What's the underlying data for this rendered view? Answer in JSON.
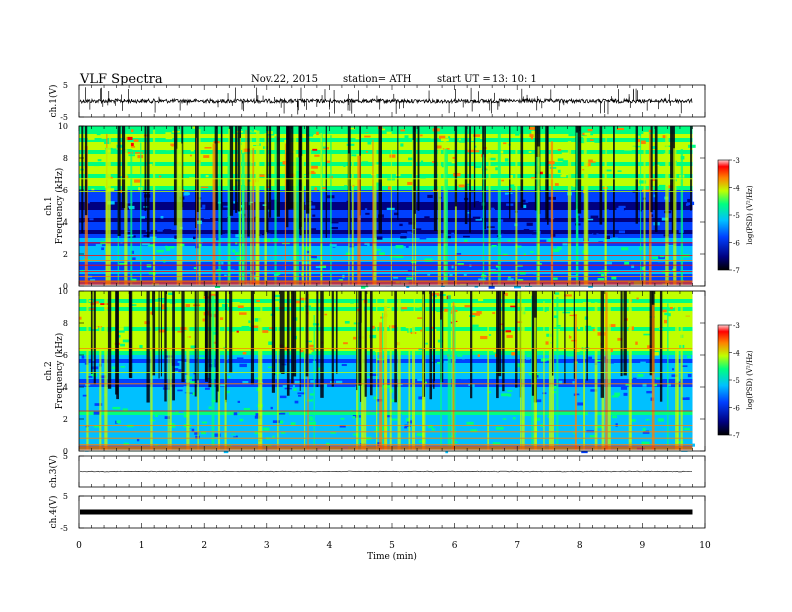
{
  "header": {
    "title": "VLF  Spectra",
    "date": "Nov.22, 2015",
    "station": "station= ATH",
    "start_label": "start  UT  =",
    "start_time": "13: 10: 1"
  },
  "colors": {
    "background": "#ffffff",
    "spectrum_low": "#000080",
    "spectrum_mid": "#00ff80",
    "spectrum_high": "#ff0000"
  },
  "chart_data": [
    {
      "type": "line",
      "id": "ch1-waveform",
      "ylabel": "ch.1(V)",
      "ylim": [
        -5,
        5
      ],
      "yticks": [
        "5",
        "-5"
      ],
      "x_range_min": [
        0,
        10
      ],
      "series": [
        {
          "values_approx": "baseline near 0 V with dense spikes"
        }
      ]
    },
    {
      "type": "heatmap",
      "id": "ch1-spectrogram",
      "ylabel": [
        "ch.1",
        "Frequency  (kHz)"
      ],
      "ylim": [
        0,
        10
      ],
      "yticks": [
        "0",
        "2",
        "4",
        "6",
        "8",
        "10"
      ],
      "colorbar": {
        "label": "log(PSD) (V²/Hz)",
        "range": [
          -7,
          -3
        ],
        "ticks": [
          "-3",
          "-4",
          "-5",
          "-6",
          "-7"
        ]
      },
      "data_end_min": 9.8
    },
    {
      "type": "heatmap",
      "id": "ch2-spectrogram",
      "ylabel": [
        "ch.2",
        "Frequency  (kHz)"
      ],
      "ylim": [
        0,
        10
      ],
      "yticks": [
        "0",
        "2",
        "4",
        "6",
        "8",
        "10"
      ],
      "colorbar": {
        "label": "log(PSD) (V²/Hz)",
        "range": [
          -7,
          -3
        ],
        "ticks": [
          "-3",
          "-4",
          "-5",
          "-6",
          "-7"
        ]
      },
      "data_end_min": 9.8
    },
    {
      "type": "line",
      "id": "ch3-waveform",
      "ylabel": "ch.3(V)",
      "ylim": [
        -5,
        5
      ],
      "yticks": [
        "5"
      ]
    },
    {
      "type": "line",
      "id": "ch4-waveform",
      "ylabel": "ch.4(V)",
      "ylim": [
        -5,
        5
      ],
      "yticks": [
        "5",
        "-5"
      ]
    }
  ],
  "xaxis": {
    "label": "Time  (min)",
    "ticks": [
      "0",
      "1",
      "2",
      "3",
      "4",
      "5",
      "6",
      "7",
      "8",
      "9",
      "10"
    ],
    "range": [
      0,
      10
    ]
  }
}
